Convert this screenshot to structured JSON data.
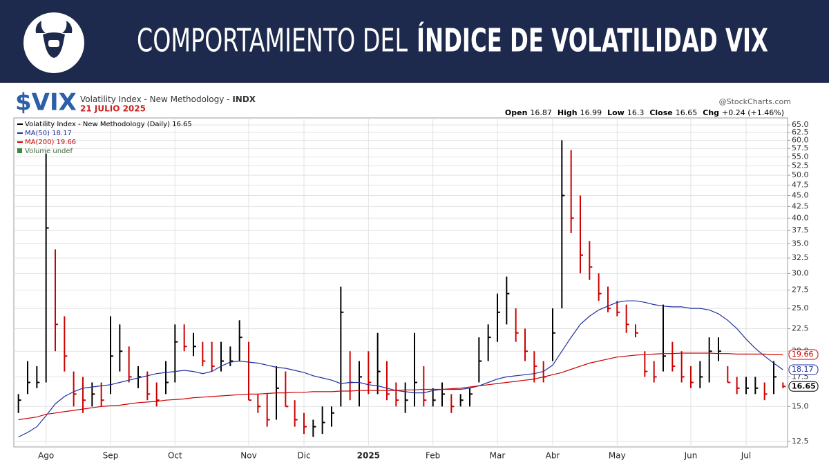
{
  "header": {
    "title_light": "COMPORTAMIENTO DEL",
    "title_bold": "ÍNDICE DE VOLATILIDAD VIX"
  },
  "chart_data": {
    "type": "hlc",
    "symbol": "$VIX",
    "name": "Volatility Index - New Methodology - ",
    "exchange": "INDX",
    "date": "21 JULIO 2025",
    "source": "@StockCharts.com",
    "quote": [
      {
        "label": "Open",
        "value": 16.87
      },
      {
        "label": "High",
        "value": 16.99
      },
      {
        "label": "Low",
        "value": 16.3
      },
      {
        "label": "Close",
        "value": 16.65
      },
      {
        "label": "Chg",
        "value": "+0.24 (+1.46%)"
      }
    ],
    "volume_label": "Volume undef",
    "categories": [
      null,
      null,
      null,
      "Ago",
      null,
      null,
      null,
      null,
      null,
      null,
      "Sep",
      null,
      null,
      null,
      null,
      null,
      null,
      "Oct",
      null,
      null,
      null,
      null,
      null,
      null,
      null,
      "Nov",
      null,
      null,
      null,
      null,
      null,
      "Dic",
      null,
      null,
      null,
      null,
      null,
      null,
      "2025",
      null,
      null,
      null,
      null,
      null,
      null,
      "Feb",
      null,
      null,
      null,
      null,
      null,
      null,
      "Mar",
      null,
      null,
      null,
      null,
      null,
      "Abr",
      null,
      null,
      null,
      null,
      null,
      null,
      "May",
      null,
      null,
      null,
      null,
      null,
      null,
      null,
      "Jun",
      null,
      null,
      null,
      null,
      null,
      "Jul",
      null,
      null,
      null,
      null
    ],
    "log_scale": true,
    "grid": true,
    "up_color": "#000000",
    "down_color": "#cc0000",
    "ylim": [
      12.15,
      67.4
    ],
    "yticks": [
      12.5,
      {
        "value": 15,
        "label": "15.0"
      },
      17.5,
      {
        "value": 20,
        "label": "20.0"
      },
      22.5,
      {
        "value": 25,
        "label": "25.0"
      },
      27.5,
      {
        "value": 30,
        "label": "30.0"
      },
      32.5,
      {
        "value": 35,
        "label": "35.0"
      },
      37.5,
      {
        "value": 40,
        "label": "40.0"
      },
      42.5,
      {
        "value": 45,
        "label": "45.0"
      },
      47.5,
      {
        "value": 50,
        "label": "50.0"
      },
      52.5,
      {
        "value": 55,
        "label": "55.0"
      },
      57.5,
      {
        "value": 60,
        "label": "60.0"
      },
      62.5,
      {
        "value": 65,
        "label": "65.0"
      }
    ],
    "series": [
      {
        "name": "Volatility Index - New Methodology (Daily) 16.65",
        "color": "#000000",
        "high": [
          16,
          19,
          18.5,
          56,
          34,
          24,
          18,
          17.5,
          17,
          17,
          24,
          23,
          20.5,
          18.5,
          18,
          17,
          19,
          23,
          23,
          22,
          21,
          21,
          21,
          20.5,
          23.5,
          21,
          16,
          16,
          18.5,
          18,
          15.5,
          14.5,
          14,
          15,
          15,
          28,
          20,
          19,
          20,
          22,
          19,
          17,
          17,
          22,
          18.5,
          16.5,
          17,
          16,
          16,
          16.5,
          21.5,
          23,
          27,
          29.5,
          25,
          22.5,
          20,
          19,
          25,
          60,
          57,
          45,
          35.5,
          30,
          28,
          26,
          25.5,
          23,
          20,
          19,
          25.5,
          21,
          20,
          18.5,
          19,
          21.5,
          21.5,
          18.5,
          17.5,
          17.5,
          17.5,
          17,
          19,
          17
        ],
        "low": [
          14.5,
          16,
          16.5,
          17,
          20,
          18,
          15,
          14.5,
          15,
          15,
          16,
          18,
          17,
          16.5,
          15.5,
          15,
          16,
          17,
          20,
          19.5,
          18.5,
          18,
          18,
          18.5,
          19,
          15.5,
          14.5,
          13.5,
          14,
          15,
          13.5,
          13,
          12.8,
          13,
          13.5,
          15,
          15.5,
          15,
          16,
          16,
          15.5,
          15,
          14.5,
          15,
          15,
          15,
          15,
          14.5,
          15,
          15,
          17,
          19,
          21,
          23,
          21,
          19,
          17,
          17,
          19,
          25,
          37,
          30,
          29,
          26,
          24.5,
          24,
          22,
          21.5,
          17.5,
          17,
          18,
          18,
          17,
          16.5,
          16.5,
          17,
          19,
          17,
          16,
          16,
          16,
          15.5,
          16,
          16.5
        ],
        "close": [
          15.5,
          17,
          17,
          38,
          23,
          19.5,
          16,
          15.5,
          16,
          15.5,
          19.5,
          20,
          17.5,
          17.5,
          16,
          15.5,
          17,
          21,
          20.5,
          20.5,
          19,
          18.5,
          19,
          19,
          21.5,
          15.5,
          15,
          14,
          16.5,
          15,
          14,
          13.5,
          13.5,
          13.8,
          14.5,
          24.5,
          17,
          17.5,
          17,
          18,
          16,
          15.5,
          15.5,
          17,
          15.5,
          15.5,
          16,
          15,
          15.5,
          16,
          19,
          21.5,
          24.5,
          27,
          22,
          20,
          18.5,
          17.5,
          22,
          45,
          40,
          33,
          31,
          27,
          25,
          24.5,
          23,
          22,
          18,
          17.5,
          19.5,
          18.5,
          17.5,
          17,
          17.5,
          20,
          20,
          17,
          16.5,
          16.5,
          16.5,
          16,
          17.5,
          16.65
        ]
      },
      {
        "name": "MA(50) 18.17",
        "color": "#1f2f9e",
        "values": [
          12.8,
          13.1,
          13.5,
          14.3,
          15.2,
          15.8,
          16.2,
          16.5,
          16.6,
          16.7,
          16.8,
          17.0,
          17.2,
          17.4,
          17.6,
          17.8,
          17.9,
          18.0,
          18.1,
          18.0,
          17.8,
          18.0,
          18.5,
          18.9,
          19.0,
          18.9,
          18.8,
          18.6,
          18.4,
          18.3,
          18.1,
          17.9,
          17.6,
          17.4,
          17.2,
          16.9,
          17.0,
          17.0,
          16.8,
          16.7,
          16.5,
          16.3,
          16.2,
          16.1,
          16.1,
          16.3,
          16.4,
          16.4,
          16.4,
          16.5,
          16.7,
          17.0,
          17.3,
          17.5,
          17.6,
          17.7,
          17.8,
          18.0,
          18.6,
          20.0,
          21.5,
          23.0,
          24.0,
          24.8,
          25.3,
          25.8,
          26.0,
          26.0,
          25.8,
          25.5,
          25.3,
          25.2,
          25.2,
          25.0,
          25.0,
          24.8,
          24.3,
          23.5,
          22.5,
          21.3,
          20.3,
          19.5,
          18.8,
          18.17
        ]
      },
      {
        "name": "MA(200) 19.66",
        "color": "#cc0000",
        "values": [
          14,
          14.1,
          14.2,
          14.4,
          14.5,
          14.6,
          14.7,
          14.8,
          14.9,
          15.0,
          15.05,
          15.1,
          15.2,
          15.3,
          15.35,
          15.4,
          15.5,
          15.55,
          15.6,
          15.7,
          15.75,
          15.8,
          15.85,
          15.9,
          15.95,
          16.0,
          16.0,
          16.05,
          16.1,
          16.1,
          16.15,
          16.15,
          16.2,
          16.2,
          16.2,
          16.25,
          16.25,
          16.3,
          16.3,
          16.3,
          16.3,
          16.3,
          16.35,
          16.35,
          16.4,
          16.4,
          16.4,
          16.45,
          16.5,
          16.6,
          16.7,
          16.8,
          16.9,
          17.0,
          17.1,
          17.2,
          17.3,
          17.5,
          17.7,
          17.9,
          18.2,
          18.5,
          18.8,
          19.0,
          19.2,
          19.4,
          19.5,
          19.6,
          19.65,
          19.7,
          19.75,
          19.75,
          19.8,
          19.8,
          19.8,
          19.8,
          19.75,
          19.75,
          19.7,
          19.7,
          19.7,
          19.7,
          19.66,
          19.66
        ]
      }
    ]
  }
}
